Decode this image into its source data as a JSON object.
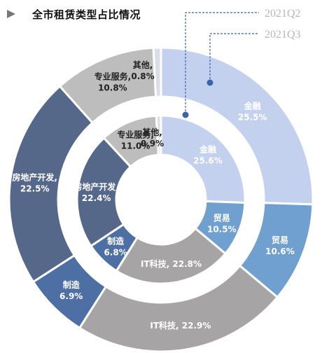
{
  "title": "全市租赁类型占比情况",
  "colors": {
    "finance": "#c3d1ee",
    "trade": "#6fa0cf",
    "it": "#a6a4a5",
    "manufacturing": "#4d6fa3",
    "real_estate": "#56688a",
    "professional": "#bdbdbd",
    "other": "#d9dee9"
  },
  "chart_data": [
    {
      "type": "pie",
      "variant": "donut",
      "ring": "outer",
      "series_name": "2021Q3",
      "slices": [
        {
          "label": "金融",
          "value": 25.5,
          "text": "25.5%"
        },
        {
          "label": "贸易",
          "value": 10.6,
          "text": "10.6%"
        },
        {
          "label": "IT科技",
          "value": 22.9,
          "text": "22.9%"
        },
        {
          "label": "制造",
          "value": 6.9,
          "text": "6.9%"
        },
        {
          "label": "房地产开发",
          "value": 22.5,
          "text": "22.5%"
        },
        {
          "label": "专业服务",
          "value": 10.8,
          "text": "10.8%"
        },
        {
          "label": "其他",
          "value": 0.8,
          "text": "0.8%"
        }
      ]
    },
    {
      "type": "pie",
      "variant": "donut",
      "ring": "inner",
      "series_name": "2021Q2",
      "slices": [
        {
          "label": "金融",
          "value": 25.6,
          "text": "25.6%"
        },
        {
          "label": "贸易",
          "value": 10.5,
          "text": "10.5%"
        },
        {
          "label": "IT科技",
          "value": 22.8,
          "text": "22.8%"
        },
        {
          "label": "制造",
          "value": 6.8,
          "text": "6.8%"
        },
        {
          "label": "房地产开发",
          "value": 22.4,
          "text": "22.4%"
        },
        {
          "label": "专业服务",
          "value": 11.0,
          "text": "11.0%"
        },
        {
          "label": "其他",
          "value": 0.9,
          "text": "0.9%"
        }
      ]
    }
  ],
  "legend": [
    {
      "label": "2021Q2",
      "ring": "inner"
    },
    {
      "label": "2021Q3",
      "ring": "outer"
    }
  ]
}
